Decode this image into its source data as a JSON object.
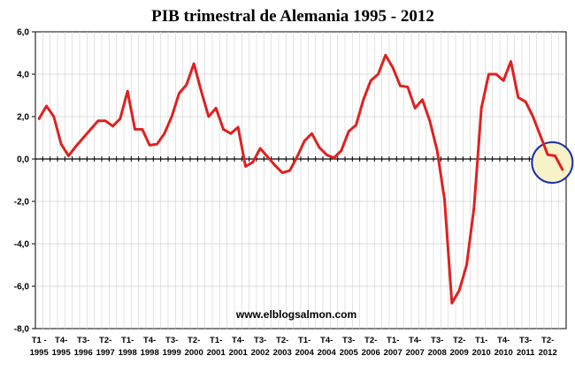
{
  "chart_data": {
    "type": "line",
    "title": "PIB trimestral de Alemania 1995 - 2012",
    "watermark": "www.elblogsalmon.com",
    "ylim": [
      -8,
      6
    ],
    "yticks": [
      "6,0",
      "4,0",
      "2,0",
      "0,0",
      "-2,0",
      "-4,0",
      "-6,0",
      "-8,0"
    ],
    "grid": true,
    "line_color": "#e02020",
    "highlight_color": "#1f2fa8",
    "highlight_fill": "#f8f2c8",
    "xtick_labels": [
      [
        "T1 -",
        "1995"
      ],
      [
        "T4-",
        "1995"
      ],
      [
        "T3-",
        "1996"
      ],
      [
        "T2-",
        "1997"
      ],
      [
        "T1-",
        "1998"
      ],
      [
        "T4-",
        "1998"
      ],
      [
        "T3-",
        "1999"
      ],
      [
        "T2-",
        "2000"
      ],
      [
        "T1-",
        "2001"
      ],
      [
        "T4-",
        "2001"
      ],
      [
        "T3-",
        "2002"
      ],
      [
        "T2-",
        "2003"
      ],
      [
        "T1-",
        "2004"
      ],
      [
        "T4-",
        "2004"
      ],
      [
        "T3-",
        "2005"
      ],
      [
        "T2-",
        "2006"
      ],
      [
        "T1-",
        "2007"
      ],
      [
        "T4-",
        "2007"
      ],
      [
        "T3-",
        "2008"
      ],
      [
        "T2-",
        "2009"
      ],
      [
        "T1-",
        "2010"
      ],
      [
        "T4-",
        "2010"
      ],
      [
        "T3-",
        "2011"
      ],
      [
        "T2-",
        "2012"
      ]
    ],
    "values": [
      1.9,
      2.5,
      2.0,
      0.7,
      0.15,
      0.6,
      1.0,
      1.4,
      1.8,
      1.8,
      1.55,
      1.9,
      3.2,
      1.4,
      1.4,
      0.65,
      0.7,
      1.2,
      2.0,
      3.1,
      3.5,
      4.5,
      3.2,
      2.0,
      2.4,
      1.4,
      1.2,
      1.5,
      -0.35,
      -0.15,
      0.5,
      0.1,
      -0.3,
      -0.65,
      -0.55,
      0.1,
      0.85,
      1.2,
      0.55,
      0.2,
      0.05,
      0.4,
      1.3,
      1.6,
      2.8,
      3.7,
      4.0,
      4.9,
      4.3,
      3.45,
      3.4,
      2.4,
      2.8,
      1.8,
      0.4,
      -1.9,
      -6.8,
      -6.2,
      -5.0,
      -2.3,
      2.4,
      4.0,
      4.0,
      3.7,
      4.6,
      2.9,
      2.7,
      2.0,
      1.1,
      0.2,
      0.15,
      -0.5
    ],
    "highlight_from_index": 68
  }
}
